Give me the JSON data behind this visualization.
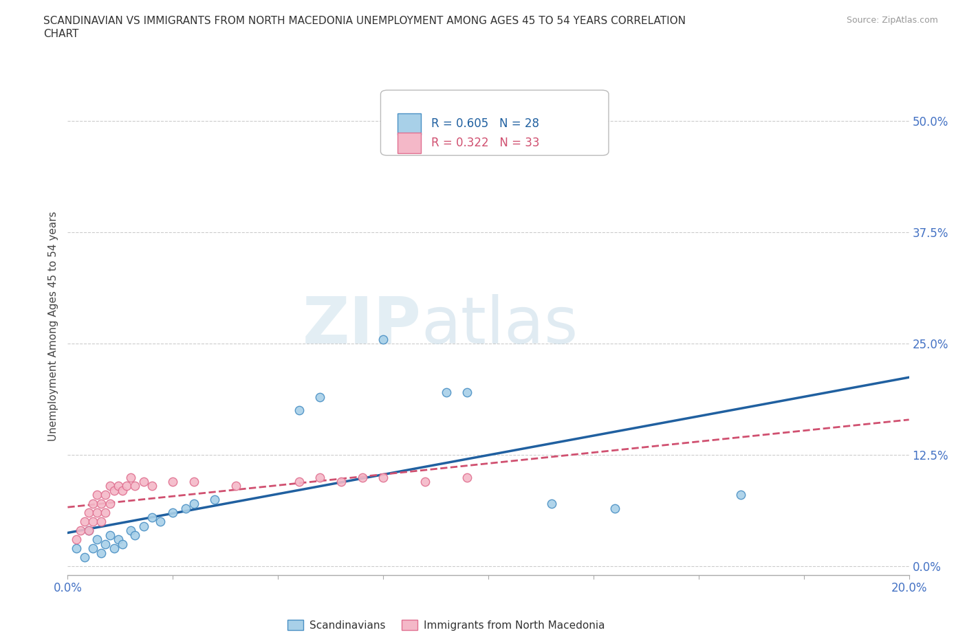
{
  "title_line1": "SCANDINAVIAN VS IMMIGRANTS FROM NORTH MACEDONIA UNEMPLOYMENT AMONG AGES 45 TO 54 YEARS CORRELATION",
  "title_line2": "CHART",
  "source": "Source: ZipAtlas.com",
  "ylabel": "Unemployment Among Ages 45 to 54 years",
  "xlim": [
    0.0,
    0.2
  ],
  "ylim": [
    -0.01,
    0.55
  ],
  "yticks": [
    0.0,
    0.125,
    0.25,
    0.375,
    0.5
  ],
  "ytick_labels": [
    "0.0%",
    "12.5%",
    "25.0%",
    "37.5%",
    "50.0%"
  ],
  "xticks": [
    0.0,
    0.025,
    0.05,
    0.075,
    0.1,
    0.125,
    0.15,
    0.175,
    0.2
  ],
  "xtick_labels": [
    "0.0%",
    "",
    "",
    "",
    "",
    "",
    "",
    "",
    "20.0%"
  ],
  "blue_scatter": [
    [
      0.002,
      0.02
    ],
    [
      0.004,
      0.01
    ],
    [
      0.005,
      0.04
    ],
    [
      0.006,
      0.02
    ],
    [
      0.007,
      0.03
    ],
    [
      0.008,
      0.015
    ],
    [
      0.009,
      0.025
    ],
    [
      0.01,
      0.035
    ],
    [
      0.011,
      0.02
    ],
    [
      0.012,
      0.03
    ],
    [
      0.013,
      0.025
    ],
    [
      0.015,
      0.04
    ],
    [
      0.016,
      0.035
    ],
    [
      0.018,
      0.045
    ],
    [
      0.02,
      0.055
    ],
    [
      0.022,
      0.05
    ],
    [
      0.025,
      0.06
    ],
    [
      0.028,
      0.065
    ],
    [
      0.03,
      0.07
    ],
    [
      0.035,
      0.075
    ],
    [
      0.055,
      0.175
    ],
    [
      0.06,
      0.19
    ],
    [
      0.075,
      0.255
    ],
    [
      0.09,
      0.195
    ],
    [
      0.095,
      0.195
    ],
    [
      0.115,
      0.07
    ],
    [
      0.13,
      0.065
    ],
    [
      0.16,
      0.08
    ]
  ],
  "pink_scatter": [
    [
      0.002,
      0.03
    ],
    [
      0.003,
      0.04
    ],
    [
      0.004,
      0.05
    ],
    [
      0.005,
      0.06
    ],
    [
      0.005,
      0.04
    ],
    [
      0.006,
      0.07
    ],
    [
      0.006,
      0.05
    ],
    [
      0.007,
      0.08
    ],
    [
      0.007,
      0.06
    ],
    [
      0.008,
      0.07
    ],
    [
      0.008,
      0.05
    ],
    [
      0.009,
      0.08
    ],
    [
      0.009,
      0.06
    ],
    [
      0.01,
      0.09
    ],
    [
      0.01,
      0.07
    ],
    [
      0.011,
      0.085
    ],
    [
      0.012,
      0.09
    ],
    [
      0.013,
      0.085
    ],
    [
      0.014,
      0.09
    ],
    [
      0.015,
      0.1
    ],
    [
      0.016,
      0.09
    ],
    [
      0.018,
      0.095
    ],
    [
      0.02,
      0.09
    ],
    [
      0.025,
      0.095
    ],
    [
      0.03,
      0.095
    ],
    [
      0.04,
      0.09
    ],
    [
      0.055,
      0.095
    ],
    [
      0.06,
      0.1
    ],
    [
      0.065,
      0.095
    ],
    [
      0.07,
      0.1
    ],
    [
      0.075,
      0.1
    ],
    [
      0.085,
      0.095
    ],
    [
      0.095,
      0.1
    ]
  ],
  "blue_R": 0.605,
  "blue_N": 28,
  "pink_R": 0.322,
  "pink_N": 33,
  "blue_color": "#a8d0e8",
  "pink_color": "#f4b8c8",
  "blue_edge_color": "#4a90c4",
  "pink_edge_color": "#e07090",
  "blue_line_color": "#2060a0",
  "pink_line_color": "#d05070",
  "watermark_zip": "ZIP",
  "watermark_atlas": "atlas",
  "background_color": "#ffffff",
  "grid_color": "#cccccc"
}
